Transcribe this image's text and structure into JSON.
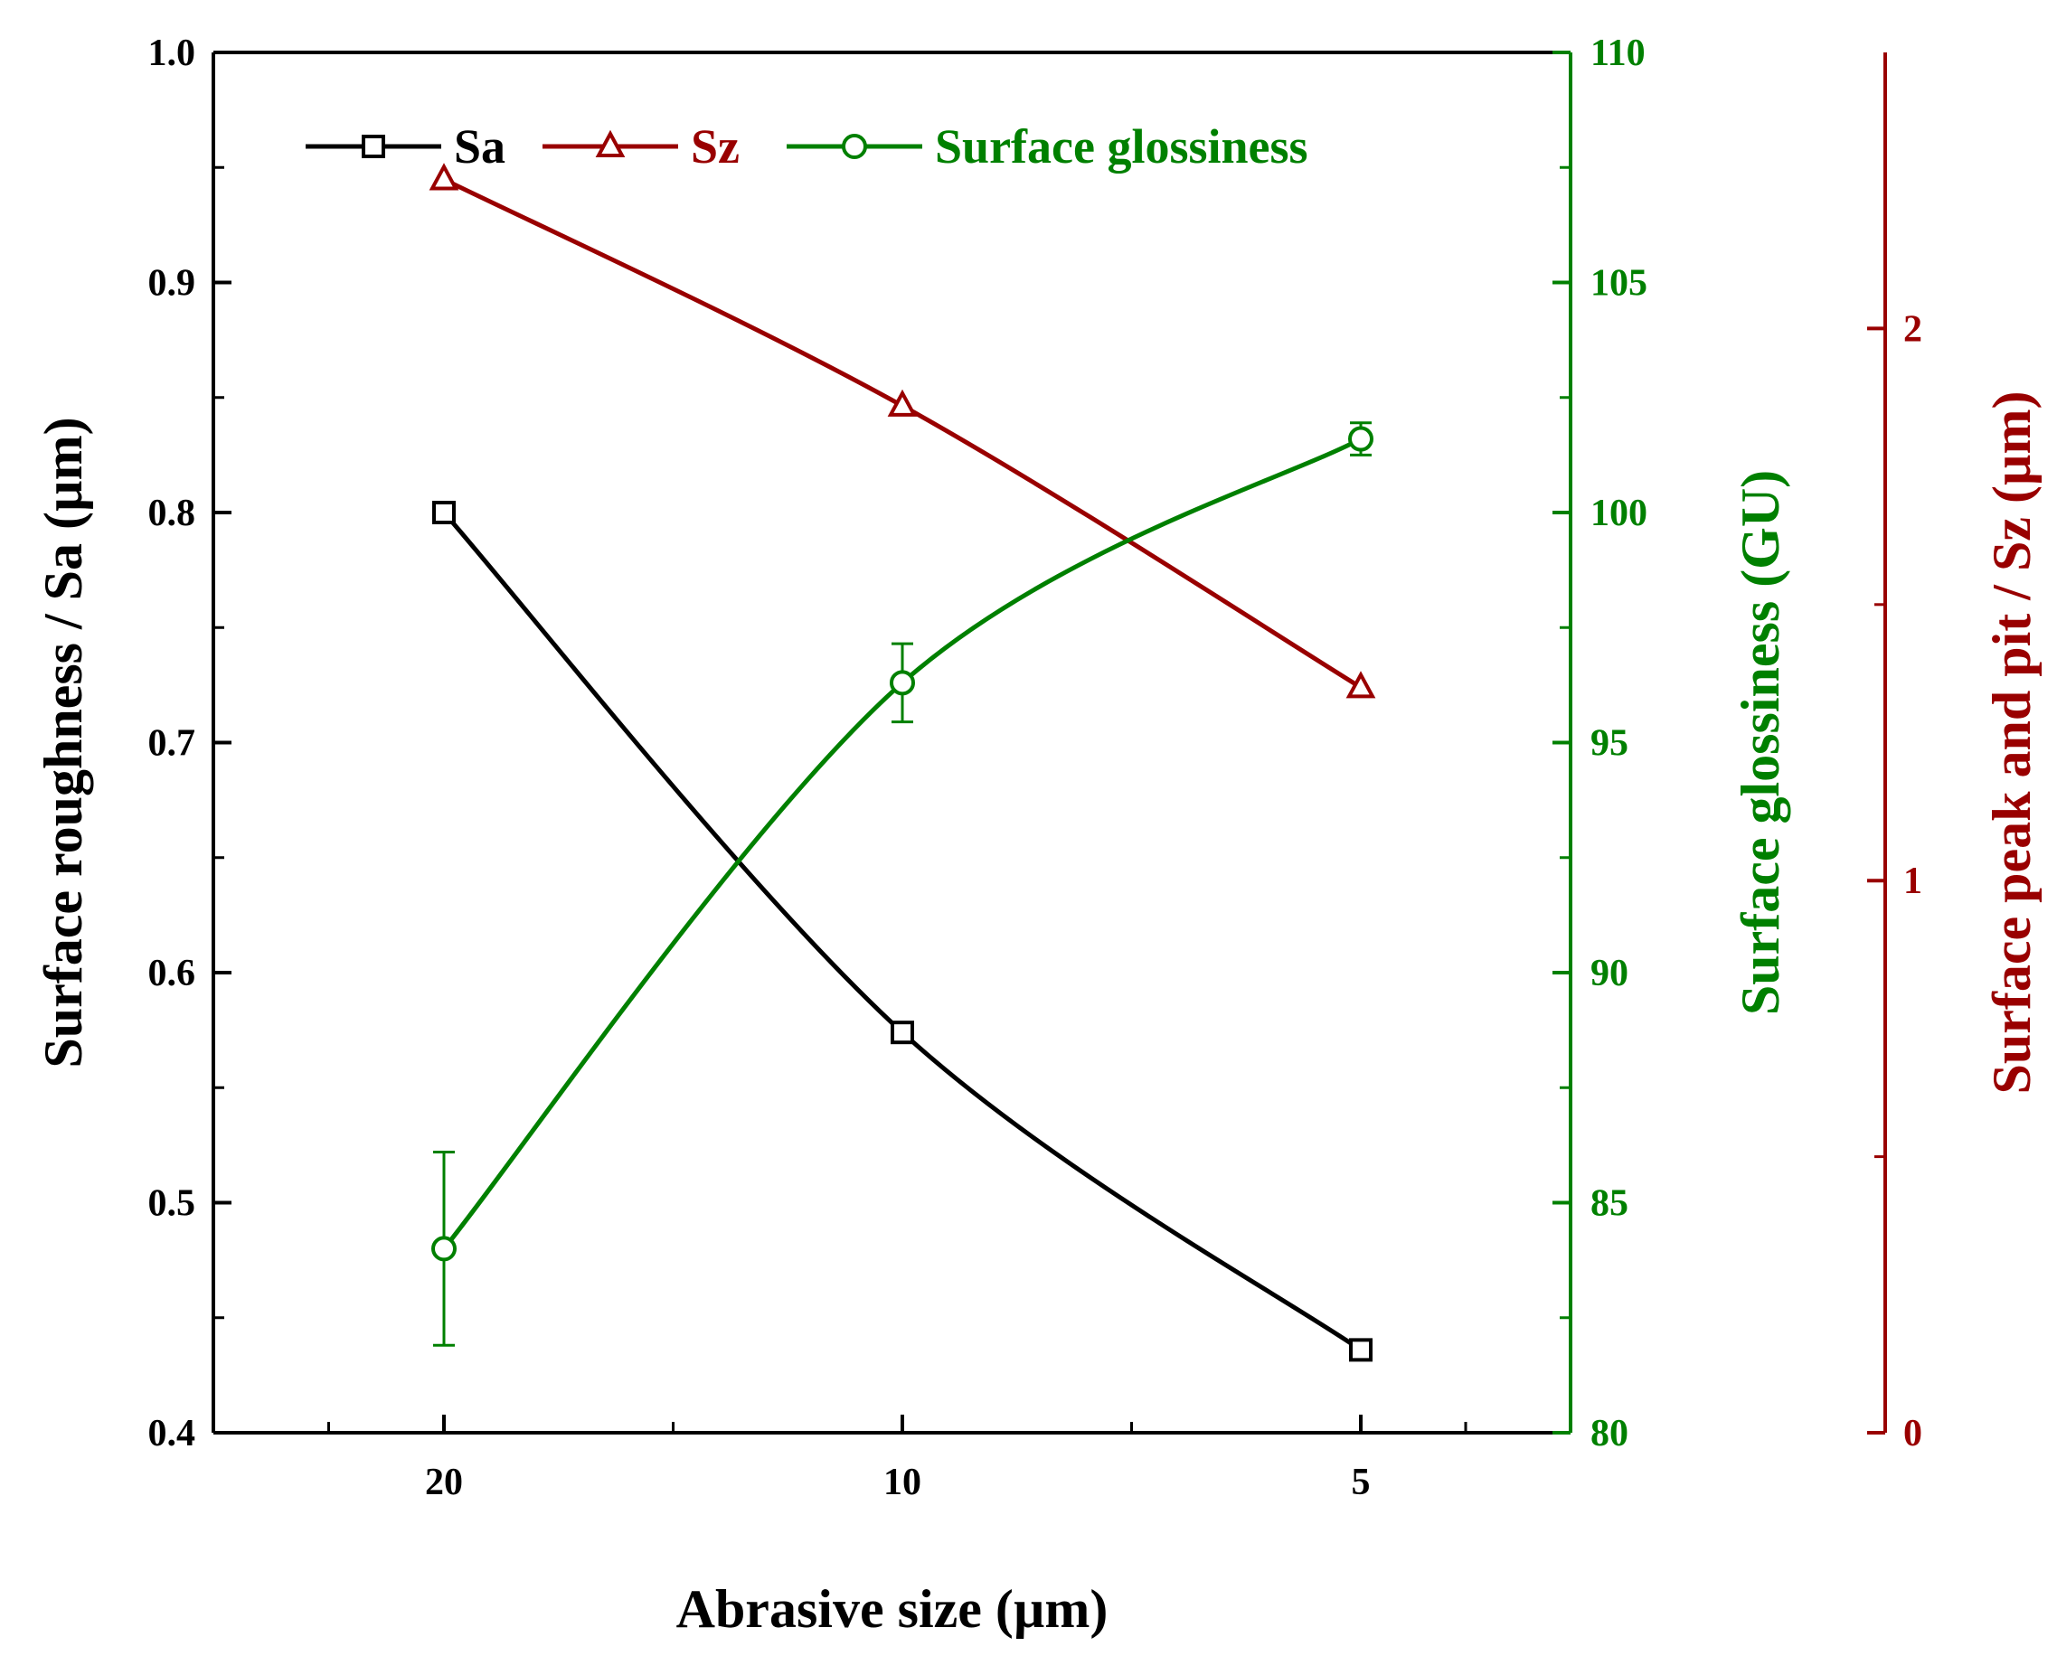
{
  "chart_data": {
    "type": "line",
    "title": "",
    "xlabel": "Abrasive size (µm)",
    "categories": [
      "20",
      "10",
      "5"
    ],
    "axes": {
      "left": {
        "label": "Surface roughness / Sa (µm)",
        "ylim": [
          0.4,
          1.0
        ],
        "ticks": [
          "0.4",
          "0.5",
          "0.6",
          "0.7",
          "0.8",
          "0.9",
          "1.0"
        ],
        "color": "#000000"
      },
      "right1": {
        "label": "Surface glossiness (GU)",
        "ylim": [
          80,
          110
        ],
        "ticks": [
          "80",
          "85",
          "90",
          "95",
          "100",
          "105",
          "110"
        ],
        "color": "#008000"
      },
      "right2": {
        "label": "Surface peak and pit / Sz (µm)",
        "ylim": [
          0,
          2.5
        ],
        "ticks": [
          "0",
          "1",
          "2"
        ],
        "color": "#990000"
      }
    },
    "series": [
      {
        "name": "Sa",
        "axis": "left",
        "marker": "square",
        "color": "#000000",
        "values": [
          0.8,
          0.574,
          0.436
        ]
      },
      {
        "name": "Sz",
        "axis": "right2",
        "marker": "triangle",
        "color": "#990000",
        "values": [
          2.27,
          1.86,
          1.35
        ]
      },
      {
        "name": "Surface glossiness",
        "axis": "right1",
        "marker": "circle",
        "color": "#008000",
        "values": [
          84.0,
          96.3,
          101.6
        ],
        "errors": [
          2.1,
          0.85,
          0.35
        ]
      }
    ],
    "legend": {
      "position": "top-left",
      "entries": [
        "Sa",
        "Sz",
        "Surface glossiness"
      ]
    },
    "grid": false
  }
}
